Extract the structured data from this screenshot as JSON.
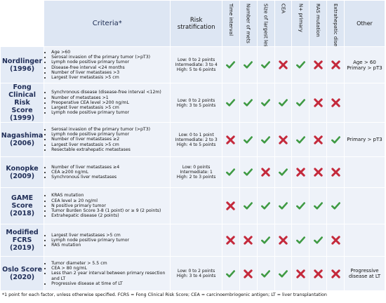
{
  "header": {
    "criteria": "Criteria*",
    "risk": "Risk stratification",
    "time_interval": "Time interval",
    "number_of_mets": "Number of mets",
    "size_largest": "Size of largest lesion",
    "cea": "CEA",
    "n_primary": "N+ primary",
    "ras": "RAS mutation",
    "extrahepatic": "Extrahepatic disease",
    "other": "Other"
  },
  "colors": {
    "check": "#3f9a43",
    "cross": "#c4293b",
    "header_bg": "#dde6f3",
    "cell_bg": "#eef2f9",
    "name_color": "#1f2d57"
  },
  "rows": [
    {
      "name_lines": [
        "Nordlinger",
        "(1996)"
      ],
      "criteria": [
        "Age >60",
        "Serosal invasion of the primary tumor (>pT3)",
        "Lymph node positive primary tumor",
        "Disease-free interval <24 months",
        "Number of liver metastases >3",
        "Largest liver metastasis >5 cm"
      ],
      "risk_lines": [
        "Low: 0 to 2 points",
        "Intermediate: 3 to 4",
        "High: 5 to 6 points"
      ],
      "marks": [
        "check",
        "check",
        "check",
        "cross",
        "check",
        "cross",
        "cross"
      ],
      "other_lines": [
        "Age > 60",
        "Primary > pT3"
      ]
    },
    {
      "name_lines": [
        "Fong",
        "Clinical Risk",
        "Score",
        "(1999)"
      ],
      "criteria": [
        "Synchronous disease (disease-free interval <12m)",
        "Number of metastases >1",
        "Preoperative CEA level >200 ng/mL",
        "Largest liver metastasis >5 cm",
        "Lymph node positive primary tumor"
      ],
      "risk_lines": [
        "Low: 0 to 2 points",
        "High: 3 to 5 points"
      ],
      "marks": [
        "check",
        "check",
        "check",
        "check",
        "check",
        "cross",
        "cross"
      ],
      "other_lines": []
    },
    {
      "name_lines": [
        "Nagashima",
        "(2006)"
      ],
      "criteria": [
        "Serosal invasion of the primary tumor (>pT3)",
        "Lymph node positive primary tumor",
        "Number of liver metastases ≥2",
        "Largest liver metastasis >5 cm",
        "Resectable extrahepatic metastases"
      ],
      "risk_lines": [
        "Low: 0 to 1 point",
        "Intermediate: 2 to 3",
        "High: 4 to 5 points"
      ],
      "marks": [
        "cross",
        "check",
        "check",
        "cross",
        "check",
        "cross",
        "check"
      ],
      "other_lines": [
        "Primary > pT3"
      ]
    },
    {
      "name_lines": [
        "Konopke",
        "(2009)"
      ],
      "criteria": [
        "Number of liver metastases ≥4",
        "CEA ≥200 ng/mL",
        "Synchronous liver metastases"
      ],
      "risk_lines": [
        "Low: 0 points",
        "Intermediate: 1",
        "High: 2 to 3 points"
      ],
      "marks": [
        "check",
        "check",
        "cross",
        "check",
        "cross",
        "cross",
        "cross"
      ],
      "other_lines": []
    },
    {
      "name_lines": [
        "GAME",
        "Score",
        "(2018)"
      ],
      "criteria": [
        "KRAS mutation",
        "CEA level ≥ 20 ng/ml",
        "N positive primary tumor",
        "Tumor Burden Score 3-8 (1 point) or ≥ 9 (2 points)",
        "Extrahepatic disease (2 points)"
      ],
      "risk_lines": [],
      "marks": [
        "cross",
        "check",
        "check",
        "check",
        "check",
        "check",
        "check"
      ],
      "other_lines": []
    },
    {
      "name_lines": [
        "Modified",
        "FCRS",
        "(2019)"
      ],
      "criteria": [
        "Largest liver metastases >5 cm",
        "Lymph node positive primary tumor",
        "RAS mutation"
      ],
      "risk_lines": [],
      "marks": [
        "cross",
        "cross",
        "check",
        "cross",
        "check",
        "check",
        "cross"
      ],
      "other_lines": []
    },
    {
      "name_lines": [
        "Oslo Score",
        "(2020)"
      ],
      "criteria": [
        "Tumor diameter > 5.5 cm",
        "CEA > 80 ng/mL",
        "Less than 2 year interval between primary resection and LT",
        "Progressive disease at time of LT"
      ],
      "risk_lines": [
        "Low: 0 to 2 points",
        "High: 3 to 4 points"
      ],
      "marks": [
        "check",
        "cross",
        "check",
        "check",
        "cross",
        "cross",
        "cross"
      ],
      "other_lines": [
        "Progressive",
        "disease at LT"
      ]
    }
  ],
  "footnote": "*1 point for each factor, unless otherwise specified. FCRS = Fong Clinical Risk Score; CEA = carcinoembriogenic antigen; LT = liver transplantation"
}
